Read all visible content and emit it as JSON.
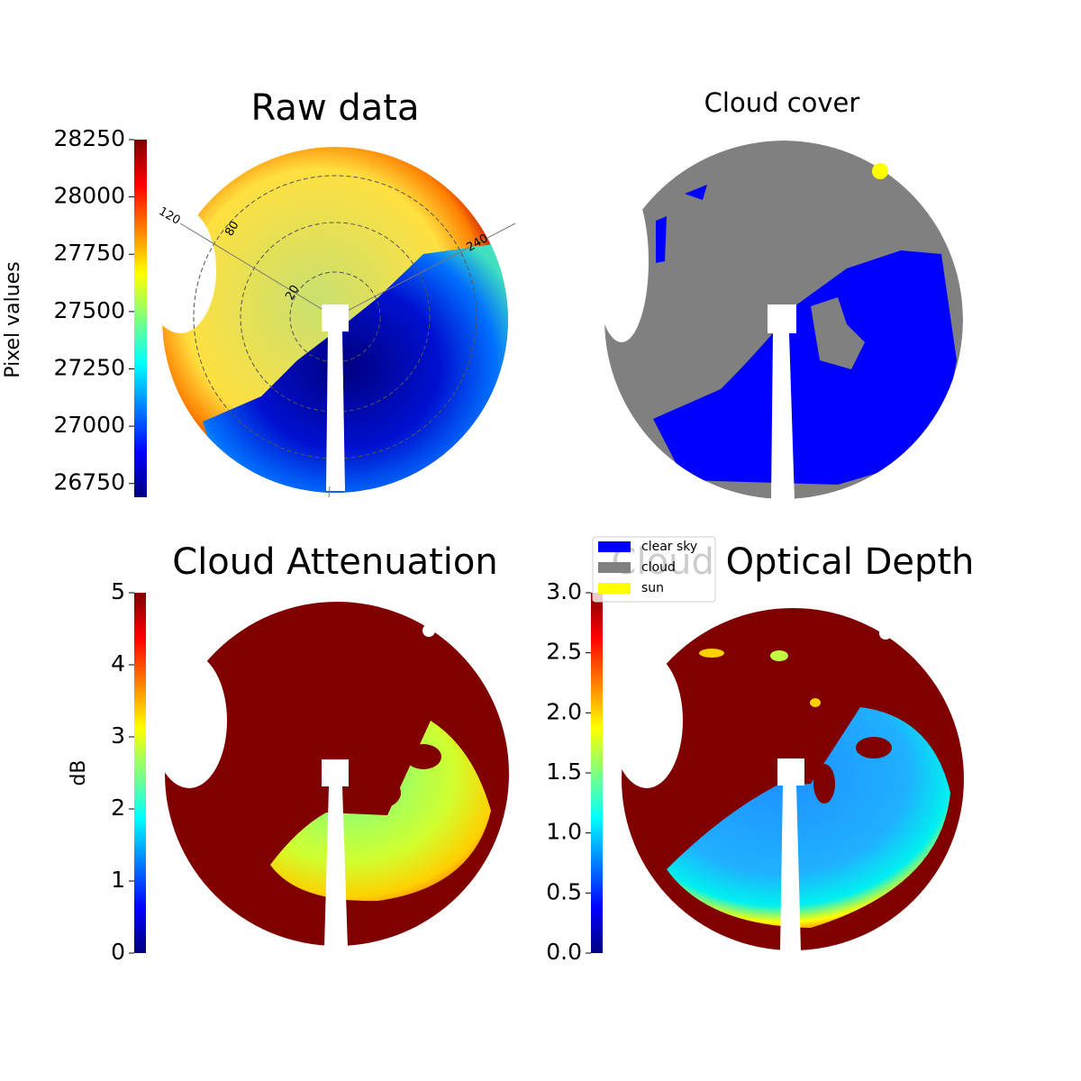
{
  "chart_data": [
    {
      "type": "heatmap",
      "title": "Raw data",
      "colorbar_label": "Pixel values",
      "colormap": "jet",
      "ylim": [
        26690,
        28250
      ],
      "yticks": [
        26750,
        27000,
        27250,
        27500,
        27750,
        28000,
        28250
      ],
      "annotations": [
        "120",
        "80",
        "20",
        "240"
      ]
    },
    {
      "type": "image",
      "title": "Cloud cover",
      "legend": [
        {
          "name": "clear sky",
          "color": "#0000ff"
        },
        {
          "name": "cloud",
          "color": "#808080"
        },
        {
          "name": "sun",
          "color": "#ffff00"
        }
      ]
    },
    {
      "type": "heatmap",
      "title": "Cloud Attenuation",
      "colorbar_label": "dB",
      "colormap": "jet",
      "ylim": [
        0,
        5
      ],
      "yticks": [
        0,
        1,
        2,
        3,
        4,
        5
      ]
    },
    {
      "type": "heatmap",
      "title": "Cloud Optical Depth",
      "colormap": "jet",
      "ylim": [
        0,
        3
      ],
      "yticks": [
        {
          "value": 0,
          "label": "0.0"
        },
        0.5,
        {
          "value": 1,
          "label": "1.0"
        },
        1.5,
        {
          "value": 2,
          "label": "2.0"
        },
        2.5,
        {
          "value": 3,
          "label": "3.0"
        }
      ]
    }
  ]
}
